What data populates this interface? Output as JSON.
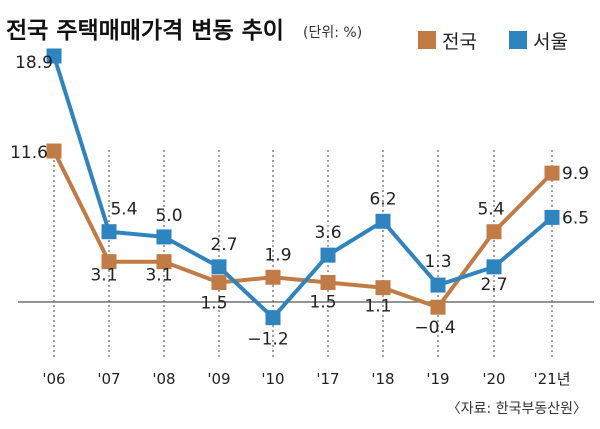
{
  "chart_data": {
    "type": "line",
    "title": "전국 주택매매가격 변동 추이",
    "unit_note": "(단위: %)",
    "categories": [
      "'06",
      "'07",
      "'08",
      "'09",
      "'10",
      "'17",
      "'18",
      "'19",
      "'20",
      "'21년"
    ],
    "series": [
      {
        "name": "전국",
        "color": "#c17b45",
        "values": [
          11.6,
          3.1,
          3.1,
          1.5,
          1.9,
          1.5,
          1.1,
          -0.4,
          5.4,
          9.9
        ],
        "labels": [
          "11.6",
          "3.1",
          "3.1",
          "1.5",
          "1.9",
          "1.5",
          "1.1",
          "−0.4",
          "5.4",
          "9.9"
        ]
      },
      {
        "name": "서울",
        "color": "#2e84bf",
        "values": [
          18.9,
          5.4,
          5.0,
          2.7,
          -1.2,
          3.6,
          6.2,
          1.3,
          2.7,
          6.5
        ],
        "labels": [
          "18.9",
          "5.4",
          "5.0",
          "2.7",
          "−1.2",
          "3.6",
          "6.2",
          "1.3",
          "2.7",
          "6.5"
        ]
      }
    ],
    "source": "〈자료: 한국부동산원〉"
  }
}
